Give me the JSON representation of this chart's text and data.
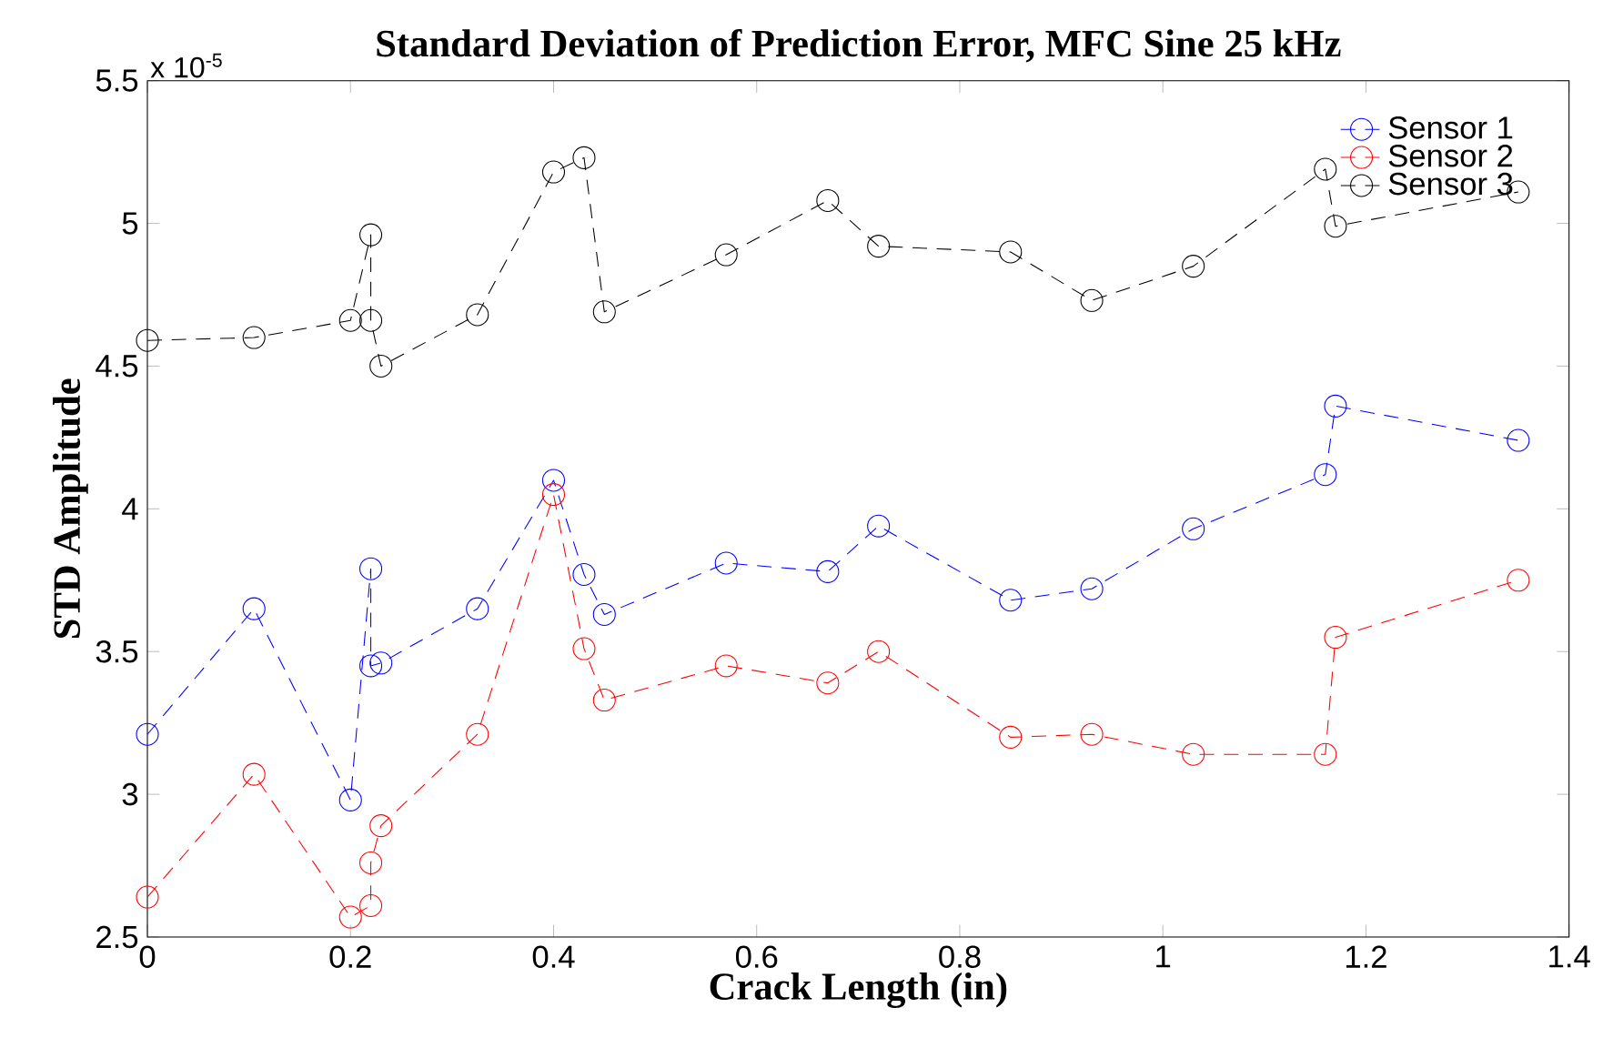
{
  "chart_data": {
    "type": "line",
    "title": "Standard Deviation of Prediction Error, MFC Sine 25 kHz",
    "xlabel": "Crack Length (in)",
    "ylabel": "STD Amplitude",
    "annotations": [
      "x 10$^{-5}$"
    ],
    "x": [
      0,
      0.105,
      0.2,
      0.22,
      0.22,
      0.23,
      0.325,
      0.4,
      0.43,
      0.45,
      0.57,
      0.67,
      0.72,
      0.85,
      0.93,
      1.03,
      1.16,
      1.17,
      1.35
    ],
    "series": [
      {
        "name": "Sensor 1",
        "color": "#0000ff",
        "values": [
          3.21,
          3.65,
          2.98,
          3.79,
          3.45,
          3.46,
          3.65,
          4.1,
          3.77,
          3.63,
          3.81,
          3.78,
          3.94,
          3.68,
          3.72,
          3.93,
          4.12,
          4.36,
          4.24
        ]
      },
      {
        "name": "Sensor 2",
        "color": "#ff0000",
        "values": [
          2.64,
          3.07,
          2.57,
          2.61,
          2.76,
          2.89,
          3.21,
          4.05,
          3.51,
          3.33,
          3.45,
          3.39,
          3.5,
          3.2,
          3.21,
          3.14,
          3.14,
          3.55,
          3.75
        ]
      },
      {
        "name": "Sensor 3",
        "color": "#000000",
        "values": [
          4.59,
          4.6,
          4.66,
          4.96,
          4.66,
          4.5,
          4.68,
          5.18,
          5.23,
          4.69,
          4.89,
          5.08,
          4.92,
          4.9,
          4.73,
          4.85,
          5.19,
          4.99,
          5.11
        ]
      }
    ],
    "xlim": [
      0,
      1.4
    ],
    "ylim": [
      2.5,
      5.5
    ],
    "xticks": [
      0,
      0.2,
      0.4,
      0.6,
      0.8,
      1,
      1.2,
      1.4
    ],
    "yticks": [
      2.5,
      3,
      3.5,
      4,
      4.5,
      5,
      5.5
    ],
    "legend": "top right",
    "marker": "circle",
    "line_style": "dashed",
    "grid": false
  }
}
